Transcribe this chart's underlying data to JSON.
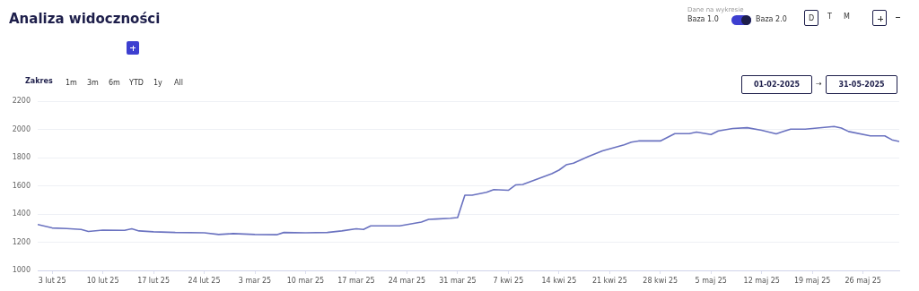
{
  "chart_data": {
    "type": "line",
    "title": "Analiza widoczności",
    "annotations": [
      "Dane na wykresie",
      "Baza 1.0",
      "Baza 2.0",
      "D",
      "T",
      "M",
      "Zakres",
      "1m",
      "3m",
      "6m",
      "YTD",
      "1y",
      "All",
      "01-02-2025",
      "→",
      "31-05-2025"
    ],
    "x": [
      "2025-02-01",
      "2025-02-03",
      "2025-02-05",
      "2025-02-07",
      "2025-02-08",
      "2025-02-10",
      "2025-02-13",
      "2025-02-14",
      "2025-02-15",
      "2025-02-17",
      "2025-02-20",
      "2025-02-24",
      "2025-02-26",
      "2025-02-28",
      "2025-03-03",
      "2025-03-06",
      "2025-03-07",
      "2025-03-10",
      "2025-03-13",
      "2025-03-15",
      "2025-03-17",
      "2025-03-18",
      "2025-03-19",
      "2025-03-23",
      "2025-03-26",
      "2025-03-27",
      "2025-03-28",
      "2025-03-30",
      "2025-03-31",
      "2025-04-01",
      "2025-04-02",
      "2025-04-04",
      "2025-04-05",
      "2025-04-07",
      "2025-04-08",
      "2025-04-09",
      "2025-04-11",
      "2025-04-13",
      "2025-04-14",
      "2025-04-15",
      "2025-04-16",
      "2025-04-18",
      "2025-04-20",
      "2025-04-23",
      "2025-04-24",
      "2025-04-25",
      "2025-04-28",
      "2025-04-30",
      "2025-05-02",
      "2025-05-03",
      "2025-05-05",
      "2025-05-06",
      "2025-05-08",
      "2025-05-10",
      "2025-05-12",
      "2025-05-14",
      "2025-05-15",
      "2025-05-16",
      "2025-05-18",
      "2025-05-22",
      "2025-05-23",
      "2025-05-24",
      "2025-05-27",
      "2025-05-29",
      "2025-05-30",
      "2025-05-31"
    ],
    "series": [
      {
        "color": "#6a72c0",
        "values": [
          1326,
          1301,
          1297,
          1290,
          1276,
          1286,
          1284,
          1295,
          1280,
          1274,
          1269,
          1267,
          1255,
          1261,
          1255,
          1253,
          1269,
          1267,
          1269,
          1280,
          1295,
          1290,
          1316,
          1316,
          1343,
          1362,
          1364,
          1370,
          1375,
          1533,
          1533,
          1554,
          1573,
          1568,
          1606,
          1610,
          1648,
          1686,
          1711,
          1749,
          1760,
          1806,
          1848,
          1890,
          1909,
          1918,
          1918,
          1970,
          1970,
          1981,
          1964,
          1989,
          2006,
          2012,
          1994,
          1968,
          1985,
          2002,
          2002,
          2021,
          2010,
          1985,
          1954,
          1954,
          1926,
          1914
        ]
      }
    ],
    "xlim": [
      "2025-02-01",
      "2025-05-31"
    ],
    "xticks": [
      {
        "value": "2025-02-03",
        "label": "3 lut 25"
      },
      {
        "value": "2025-02-10",
        "label": "10 lut 25"
      },
      {
        "value": "2025-02-17",
        "label": "17 lut 25"
      },
      {
        "value": "2025-02-24",
        "label": "24 lut 25"
      },
      {
        "value": "2025-03-03",
        "label": "3 mar 25"
      },
      {
        "value": "2025-03-10",
        "label": "10 mar 25"
      },
      {
        "value": "2025-03-17",
        "label": "17 mar 25"
      },
      {
        "value": "2025-03-24",
        "label": "24 mar 25"
      },
      {
        "value": "2025-03-31",
        "label": "31 mar 25"
      },
      {
        "value": "2025-04-07",
        "label": "7 kwi 25"
      },
      {
        "value": "2025-04-14",
        "label": "14 kwi 25"
      },
      {
        "value": "2025-04-21",
        "label": "21 kwi 25"
      },
      {
        "value": "2025-04-28",
        "label": "28 kwi 25"
      },
      {
        "value": "2025-05-05",
        "label": "5 maj 25"
      },
      {
        "value": "2025-05-12",
        "label": "12 maj 25"
      },
      {
        "value": "2025-05-19",
        "label": "19 maj 25"
      },
      {
        "value": "2025-05-26",
        "label": "26 maj 25"
      }
    ],
    "ylim": [
      1000,
      2200
    ],
    "yticks": [
      1000,
      1200,
      1400,
      1600,
      1800,
      2000,
      2200
    ],
    "grid": "y",
    "marker": "none",
    "line_style": "solid"
  }
}
